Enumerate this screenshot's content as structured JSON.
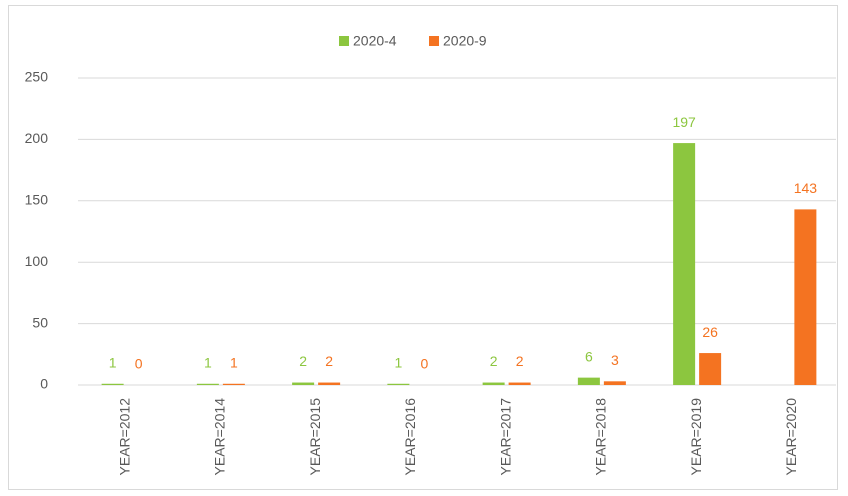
{
  "chart_data": {
    "type": "bar",
    "categories": [
      "YEAR=2012",
      "YEAR=2014",
      "YEAR=2015",
      "YEAR=2016",
      "YEAR=2017",
      "YEAR=2018",
      "YEAR=2019",
      "YEAR=2020"
    ],
    "series": [
      {
        "name": "2020-4",
        "color": "#8cc63f",
        "values": [
          1,
          1,
          2,
          1,
          2,
          6,
          197,
          null
        ]
      },
      {
        "name": "2020-9",
        "color": "#f47321",
        "values": [
          0,
          1,
          2,
          0,
          2,
          3,
          26,
          143
        ]
      }
    ],
    "ylim": [
      0,
      250
    ],
    "yticks": [
      0,
      50,
      100,
      150,
      200,
      250
    ],
    "grid": true,
    "legend": "top"
  }
}
